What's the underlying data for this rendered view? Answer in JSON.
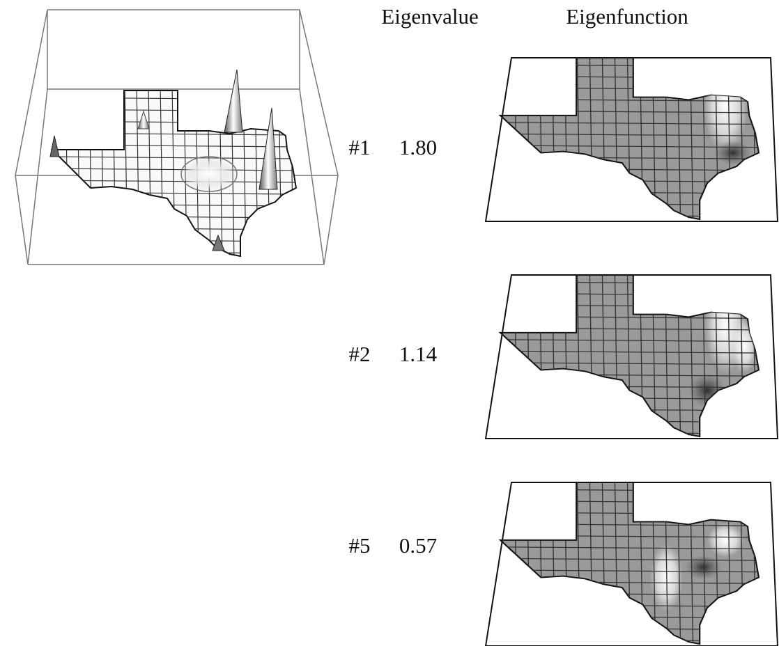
{
  "header": {
    "columns": [
      "Eigenvalue",
      "Eigenfunction"
    ]
  },
  "rows": [
    {
      "label": "#1",
      "eigenvalue": "1.80"
    },
    {
      "label": "#2",
      "eigenvalue": "1.14"
    },
    {
      "label": "#5",
      "eigenvalue": "0.57"
    }
  ]
}
